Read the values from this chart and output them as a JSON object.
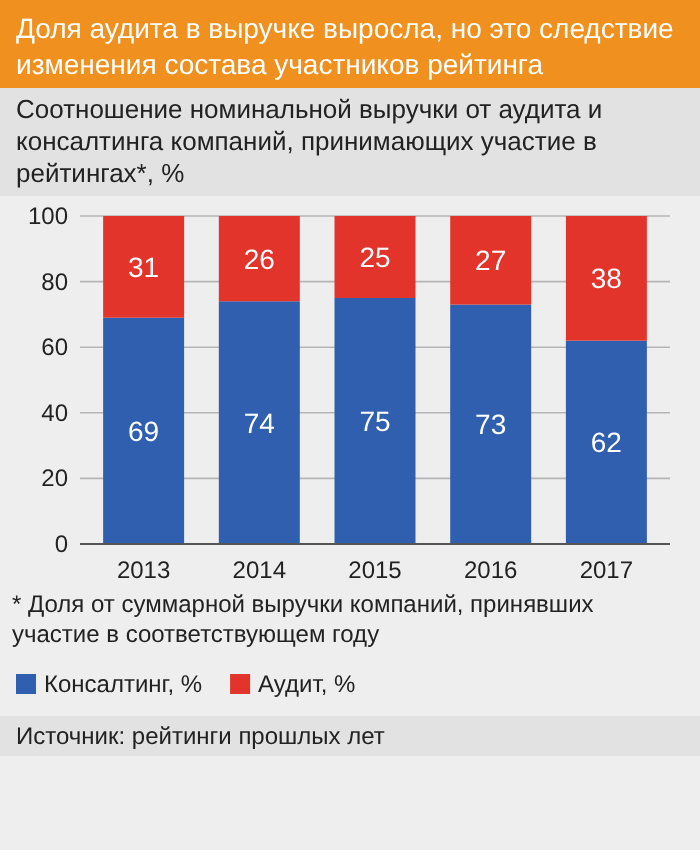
{
  "chart_data": {
    "type": "bar",
    "title": "Доля аудита в выручке выросла, но это следствие изменения состава участников рейтинга",
    "subtitle": "Соотношение номинальной выручки от аудита и консалтинга компаний, принимающих участие в рейтингах*, %",
    "categories": [
      "2013",
      "2014",
      "2015",
      "2016",
      "2017"
    ],
    "series": [
      {
        "name": "Консалтинг, %",
        "color": "#2f5fae",
        "values": [
          69,
          74,
          75,
          73,
          62
        ]
      },
      {
        "name": "Аудит, %",
        "color": "#e2342b",
        "values": [
          31,
          26,
          25,
          27,
          38
        ]
      }
    ],
    "stacked": true,
    "data_labels": true,
    "ylim": [
      0,
      100
    ],
    "yticks": [
      0,
      20,
      40,
      60,
      80,
      100
    ],
    "grid": "y",
    "legend": "bottom left",
    "annotations": [
      "* Доля от суммарной выручки компаний, принявших участие в соответствующем году",
      "Источник: рейтинги прошлых лет"
    ]
  }
}
